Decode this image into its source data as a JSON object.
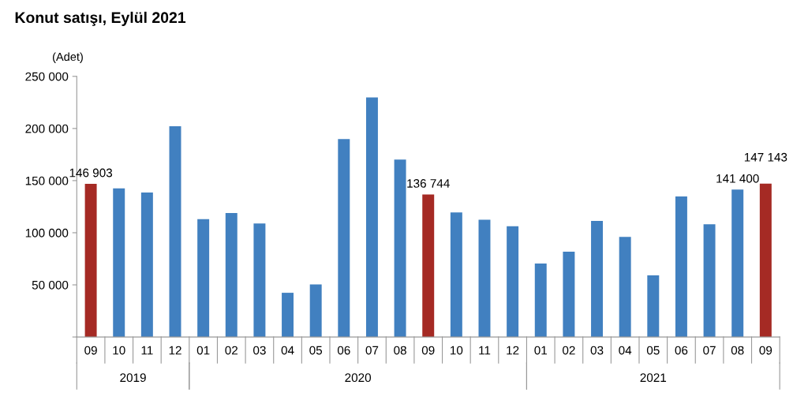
{
  "chart_data": {
    "type": "bar",
    "title": "Konut satışı, Eylül 2021",
    "ylabel": "(Adet)",
    "categories": [
      "09",
      "10",
      "11",
      "12",
      "01",
      "02",
      "03",
      "04",
      "05",
      "06",
      "07",
      "08",
      "09",
      "10",
      "11",
      "12",
      "01",
      "02",
      "03",
      "04",
      "05",
      "06",
      "07",
      "08",
      "09"
    ],
    "values": [
      146903,
      142600,
      138600,
      202100,
      113000,
      119000,
      108900,
      42400,
      50500,
      189800,
      229700,
      170200,
      136744,
      119500,
      112400,
      106200,
      70500,
      81800,
      111400,
      96100,
      59200,
      134800,
      108200,
      141400,
      147143
    ],
    "colors": [
      "#a52a24",
      "#4180c0",
      "#4180c0",
      "#4180c0",
      "#4180c0",
      "#4180c0",
      "#4180c0",
      "#4180c0",
      "#4180c0",
      "#4180c0",
      "#4180c0",
      "#4180c0",
      "#a52a24",
      "#4180c0",
      "#4180c0",
      "#4180c0",
      "#4180c0",
      "#4180c0",
      "#4180c0",
      "#4180c0",
      "#4180c0",
      "#4180c0",
      "#4180c0",
      "#4180c0",
      "#a52a24"
    ],
    "value_labels": [
      "146 903",
      null,
      null,
      null,
      null,
      null,
      null,
      null,
      null,
      null,
      null,
      null,
      "136 744",
      null,
      null,
      null,
      null,
      null,
      null,
      null,
      null,
      null,
      null,
      "141 400",
      "147 143"
    ],
    "ylim": [
      0,
      250000
    ],
    "yticks": [
      {
        "value": 0,
        "label": null
      },
      {
        "value": 50000,
        "label": "50 000"
      },
      {
        "value": 100000,
        "label": "100 000"
      },
      {
        "value": 150000,
        "label": "150 000"
      },
      {
        "value": 200000,
        "label": "200 000"
      },
      {
        "value": 250000,
        "label": "250 000"
      }
    ],
    "annotations": [
      "2019",
      "2020",
      "2021"
    ],
    "grid": false,
    "legend": false
  }
}
